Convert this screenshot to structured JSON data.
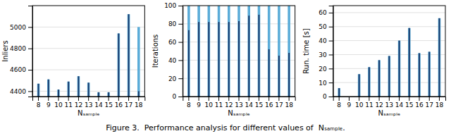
{
  "caption": "Figure 3.  Performance analysis for different values of  Nₛₐₘₚₗₑ.",
  "chart_data": [
    {
      "type": "bar",
      "x_label": "Nₛₐₘₚₗₑ",
      "y_label": "Inliers",
      "categories": [
        "8",
        "9",
        "10",
        "11",
        "12",
        "13",
        "14",
        "15",
        "16",
        "17",
        "18"
      ],
      "series": [
        {
          "color": "#5bacd8",
          "values": [
            4470,
            4510,
            4415,
            4490,
            4540,
            4480,
            4390,
            4390,
            4940,
            5120,
            5000
          ]
        },
        {
          "color": "#1a3a6b",
          "values": [
            4470,
            4510,
            4415,
            4490,
            4540,
            4480,
            4390,
            4390,
            4940,
            5120,
            4400
          ]
        }
      ],
      "ylim": [
        4350,
        5200
      ],
      "yticks": [
        4400,
        4600,
        4800,
        5000
      ],
      "grid": true
    },
    {
      "type": "bar",
      "x_label": "Nₛₐₘₚₗₑ",
      "y_label": "Iterations",
      "categories": [
        "8",
        "9",
        "10",
        "11",
        "12",
        "13",
        "14",
        "15",
        "16",
        "17",
        "18"
      ],
      "series": [
        {
          "color": "#5bacd8",
          "values": [
            100,
            100,
            100,
            100,
            100,
            100,
            100,
            100,
            100,
            100,
            100
          ]
        },
        {
          "color": "#1a3a6b",
          "values": [
            73,
            82,
            82,
            82,
            82,
            83,
            89,
            90,
            52,
            45,
            48
          ]
        }
      ],
      "ylim": [
        0,
        100
      ],
      "yticks": [
        0,
        20,
        40,
        60,
        80,
        100
      ],
      "grid": true
    },
    {
      "type": "bar",
      "x_label": "Nₛₐₘₚₗₑ",
      "y_label": "Run. time [s]",
      "categories": [
        "8",
        "9",
        "10",
        "11",
        "12",
        "13",
        "14",
        "15",
        "16",
        "17",
        "18"
      ],
      "series": [
        {
          "color": "#5bacd8",
          "values": [
            6,
            0,
            16,
            21,
            26,
            29,
            40,
            49,
            31,
            32,
            56
          ]
        },
        {
          "color": "#1a3a6b",
          "values": [
            6,
            0,
            16,
            21,
            26,
            29,
            40,
            49,
            31,
            32,
            56
          ]
        }
      ],
      "ylim": [
        0,
        65
      ],
      "yticks": [
        0,
        10,
        20,
        30,
        40,
        50,
        60
      ],
      "grid": true
    }
  ]
}
